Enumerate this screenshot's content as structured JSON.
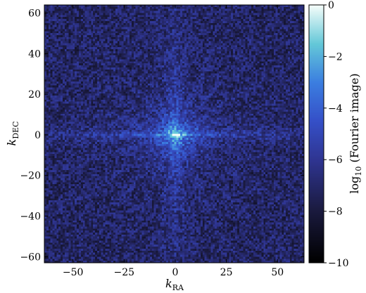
{
  "chart_data": {
    "type": "heatmap",
    "description_of_values": "log10 magnitude of 2D Fourier image",
    "xlabel": "k_RA",
    "ylabel": "k_DEC",
    "xlim": [
      -64,
      63
    ],
    "ylim": [
      -63,
      64
    ],
    "x_ticks": [
      -50,
      -25,
      0,
      25,
      50
    ],
    "y_ticks": [
      -60,
      -40,
      -20,
      0,
      20,
      40,
      60
    ],
    "x_tick_labels": [
      "−50",
      "−25",
      "0",
      "25",
      "50"
    ],
    "y_tick_labels": [
      "−60",
      "−40",
      "−20",
      "0",
      "20",
      "40",
      "60"
    ],
    "grid_size": [
      128,
      128
    ],
    "colorbar": {
      "label": "log10 (Fourier image)",
      "label_main": "log",
      "label_sub": "10",
      "label_tail": " (Fourier image)",
      "range": [
        -10,
        0
      ],
      "ticks": [
        0,
        -2,
        -4,
        -6,
        -8,
        -10
      ],
      "tick_labels": [
        "0",
        "−2",
        "−4",
        "−6",
        "−8",
        "−10"
      ],
      "colormap_stops": [
        {
          "value": 0.0,
          "color": "#000000"
        },
        {
          "value": 0.2,
          "color": "#1a1a3e"
        },
        {
          "value": 0.4,
          "color": "#2f3592"
        },
        {
          "value": 0.55,
          "color": "#3550c8"
        },
        {
          "value": 0.7,
          "color": "#3b7ee0"
        },
        {
          "value": 0.85,
          "color": "#64c8d8"
        },
        {
          "value": 1.0,
          "color": "#f5fdfa"
        }
      ]
    },
    "features": {
      "center_peak": 0,
      "background_level": -7.2,
      "cross_axes_level": -5.0
    }
  }
}
